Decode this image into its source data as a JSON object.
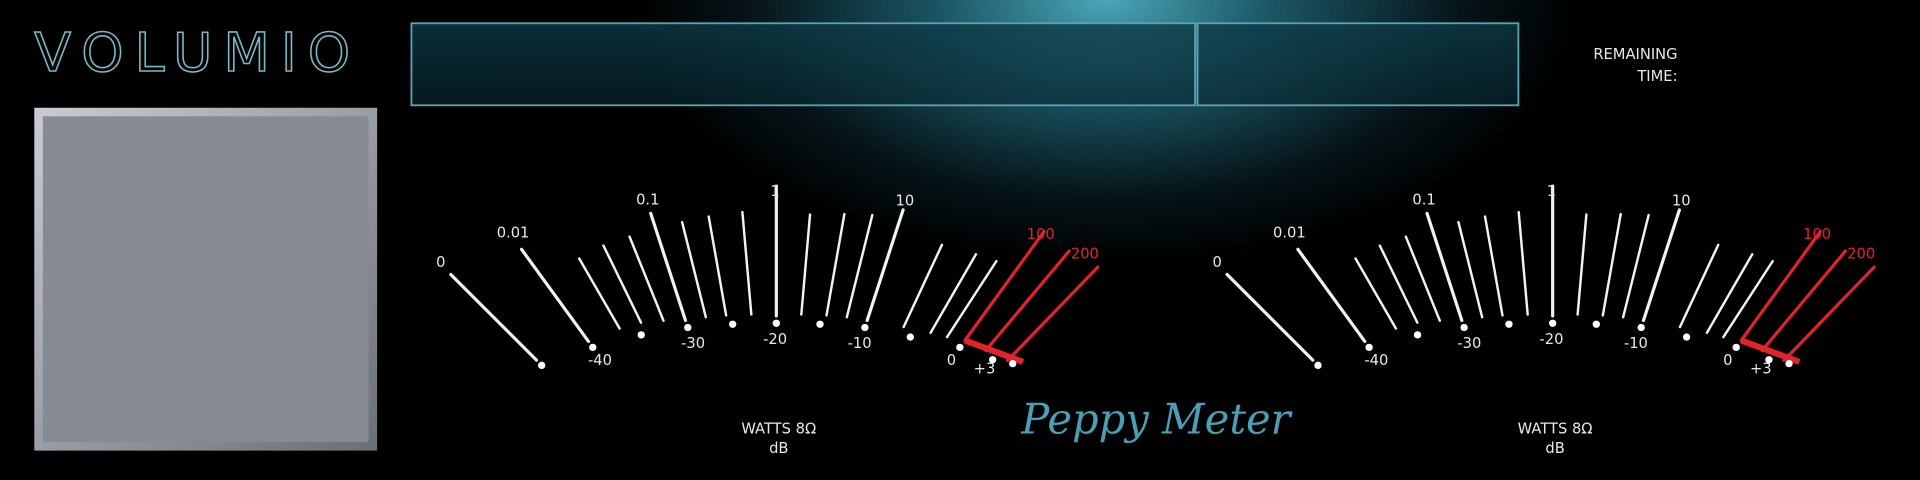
{
  "logo": "VOLUMIO",
  "remaining_time": {
    "line1": "REMAINING",
    "line2": "TIME:"
  },
  "brand": "Peppy Meter",
  "meters": [
    {
      "top_labels": [
        "0",
        "0.01",
        "0.1",
        "1",
        "10",
        "100",
        "200"
      ],
      "bottom_labels": [
        "-40",
        "-30",
        "-20",
        "-10",
        "0",
        "+3"
      ],
      "unit": "WATTS 8Ω",
      "unit2": "dB"
    },
    {
      "top_labels": [
        "0",
        "0.01",
        "0.1",
        "1",
        "10",
        "100",
        "200"
      ],
      "bottom_labels": [
        "-40",
        "-30",
        "-20",
        "-10",
        "0",
        "+3"
      ],
      "unit": "WATTS 8Ω",
      "unit2": "dB"
    }
  ]
}
